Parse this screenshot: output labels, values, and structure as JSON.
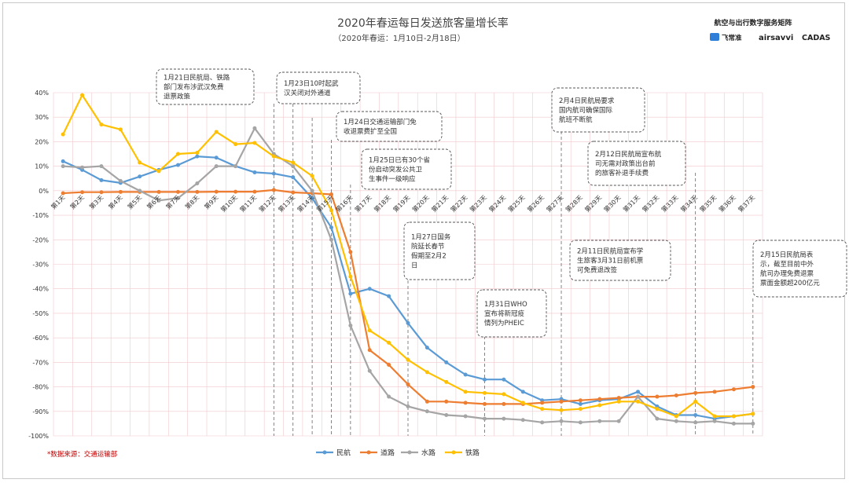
{
  "chart_data": {
    "type": "line",
    "title": "2020年春运每日发送旅客量增长率",
    "subtitle": "（2020年春运：1月10日-2月18日）",
    "categories": [
      "第1天",
      "第2天",
      "第3天",
      "第4天",
      "第5天",
      "第6天",
      "第7天",
      "第8天",
      "第9天",
      "第10天",
      "第11天",
      "第12天",
      "第13天",
      "第14天",
      "第15天",
      "第16天",
      "第17天",
      "第18天",
      "第19天",
      "第20天",
      "第21天",
      "第22天",
      "第23天",
      "第24天",
      "第25天",
      "第26天",
      "第27天",
      "第28天",
      "第29天",
      "第30天",
      "第31天",
      "第32天",
      "第33天",
      "第34天",
      "第35天",
      "第36天",
      "第37天"
    ],
    "ylim": [
      -100,
      40
    ],
    "yticks": [
      "40%",
      "30%",
      "20%",
      "10%",
      "0%",
      "-10%",
      "-20%",
      "-30%",
      "-40%",
      "-50%",
      "-60%",
      "-70%",
      "-80%",
      "-90%",
      "-100%"
    ],
    "ytick_values": [
      40,
      30,
      20,
      10,
      0,
      -10,
      -20,
      -30,
      -40,
      -50,
      -60,
      -70,
      -80,
      -90,
      -100
    ],
    "grid": true,
    "legend_position": "bottom",
    "series": [
      {
        "name": "民航",
        "color": "#5b9bd5",
        "values": [
          12,
          8.5,
          4.3,
          3.2,
          5.8,
          8.5,
          10.5,
          14,
          13.5,
          10,
          7.5,
          7,
          5.5,
          -3,
          -15,
          -42,
          -40,
          -43,
          -54,
          -64,
          -70,
          -75,
          -77,
          -77,
          -82,
          -85.5,
          -85,
          -87,
          -85.5,
          -85,
          -82,
          -88,
          -91.5,
          -91.5,
          -93,
          -92,
          -91
        ]
      },
      {
        "name": "道路",
        "color": "#ed7d31",
        "values": [
          -1,
          -0.6,
          -0.6,
          -0.5,
          -0.5,
          -0.5,
          -0.5,
          -0.5,
          -0.4,
          -0.4,
          -0.4,
          0.3,
          -0.7,
          -1,
          -1.5,
          -25,
          -65,
          -71,
          -79,
          -86,
          -86,
          -86.5,
          -87,
          -87,
          -87,
          -86.5,
          -86,
          -85.5,
          -85,
          -84.5,
          -84,
          -84,
          -83.5,
          -82.5,
          -82,
          -81,
          -80
        ]
      },
      {
        "name": "水路",
        "color": "#a5a5a5",
        "values": [
          10,
          9.5,
          10,
          4,
          0,
          -4,
          -3,
          3,
          10,
          10,
          25.5,
          15,
          10,
          0,
          -20,
          -55,
          -73.5,
          -84,
          -88,
          -90,
          -91.5,
          -92,
          -93,
          -93,
          -93.5,
          -94.5,
          -94,
          -94.5,
          -94,
          -94,
          -84,
          -93,
          -94,
          -94.5,
          -94,
          -95,
          -95
        ]
      },
      {
        "name": "铁路",
        "color": "#ffc000",
        "values": [
          23,
          39,
          27,
          25,
          11.5,
          8,
          15,
          15.5,
          24,
          19,
          19.5,
          14,
          11.5,
          6,
          -8,
          -35,
          -57,
          -62,
          -69,
          -74,
          -78,
          -82,
          -82.5,
          -83,
          -86.5,
          -89,
          -89.5,
          -89,
          -87.5,
          -86,
          -86,
          -89,
          -92,
          -86,
          -92,
          -92,
          -91
        ]
      }
    ],
    "annotations": [
      {
        "text": [
          "1月21日民航局、铁路",
          "部门发布涉武汉免费",
          "退票政策"
        ]
      },
      {
        "text": [
          "1月23日10时起武",
          "汉关闭对外通道"
        ]
      },
      {
        "text": [
          "1月24日交通运输部门免",
          "收退票费扩至全国"
        ]
      },
      {
        "text": [
          "1月25日已有30个省",
          "份启动突发公共卫",
          "生事件一级响应"
        ]
      },
      {
        "text": [
          "1月27日国务",
          "院延长春节",
          "假期至2月2",
          "日"
        ]
      },
      {
        "text": [
          "1月31日WHO",
          "宣布将新冠疫",
          "情列为PHEIC"
        ]
      },
      {
        "text": [
          "2月4日民航局要求",
          "国内航司确保国际",
          "航班不断航"
        ]
      },
      {
        "text": [
          "2月12日民航局宣布航",
          "司无需对政策出台前",
          "的旅客补退手续费"
        ]
      },
      {
        "text": [
          "2月11日民航局宣布学",
          "生旅客3月31日前机票",
          "可免费退改签"
        ]
      },
      {
        "text": [
          "2月15日民航局表",
          "示，截至目前中外",
          "航司办理免费退票",
          "票面金额超200亿元"
        ]
      }
    ]
  },
  "source_note": "*数据来源：交通运输部",
  "brand": {
    "title": "航空与出行数字服务矩阵",
    "logos": [
      "飞常准",
      "airsavvi",
      "CADAS"
    ]
  },
  "colors": {
    "grid": "#f0c8cc",
    "dashed_line": "#666666",
    "box_border": "#555555"
  }
}
